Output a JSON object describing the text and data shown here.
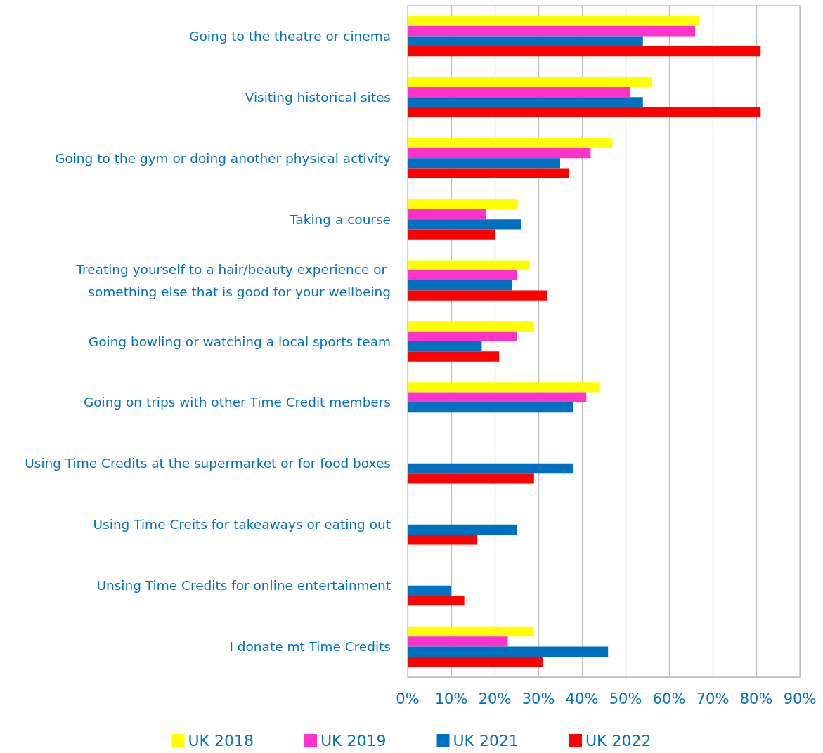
{
  "chart_data": {
    "type": "bar",
    "orientation": "horizontal",
    "categories": [
      "Going to the theatre or cinema",
      "Visiting historical sites",
      "Going to the gym or doing another physical activity",
      "Taking a course",
      "Treating yourself to a hair/beauty experience or something else that is good for your wellbeing",
      "Going bowling or watching a local sports team",
      "Going on trips with other Time Credit members",
      "Using Time Credits at the supermarket or for food boxes",
      "Using Time Creits for takeaways or eating out",
      "Unsing Time Credits for online entertainment",
      "I donate mt Time Credits"
    ],
    "series": [
      {
        "name": "UK 2018",
        "color": "#ffff00",
        "values": [
          0.67,
          0.56,
          0.47,
          0.25,
          0.28,
          0.29,
          0.44,
          null,
          null,
          null,
          0.29
        ]
      },
      {
        "name": "UK 2019",
        "color": "#ff33cc",
        "values": [
          0.66,
          0.51,
          0.42,
          0.18,
          0.25,
          0.25,
          0.41,
          null,
          null,
          null,
          0.23
        ]
      },
      {
        "name": "UK 2021",
        "color": "#0070c0",
        "values": [
          0.54,
          0.54,
          0.35,
          0.26,
          0.24,
          0.17,
          0.38,
          0.38,
          0.25,
          0.1,
          0.46
        ]
      },
      {
        "name": "UK 2022",
        "color": "#ff0000",
        "values": [
          0.81,
          0.81,
          0.37,
          0.2,
          0.32,
          0.21,
          null,
          0.29,
          0.16,
          0.13,
          0.31
        ]
      }
    ],
    "xlim": [
      0,
      0.9
    ],
    "xticks": [
      {
        "value": 0,
        "label": "0%"
      },
      {
        "value": 0.1,
        "label": "10%"
      },
      {
        "value": 0.2,
        "label": "20%"
      },
      {
        "value": 0.3,
        "label": "30%"
      },
      {
        "value": 0.4,
        "label": "40%"
      },
      {
        "value": 0.5,
        "label": "50%"
      },
      {
        "value": 0.6,
        "label": "60%"
      },
      {
        "value": 0.7,
        "label": "70%"
      },
      {
        "value": 0.8,
        "label": "80%"
      },
      {
        "value": 0.9,
        "label": "90%"
      }
    ],
    "grid": "x",
    "legend": "bottom"
  }
}
